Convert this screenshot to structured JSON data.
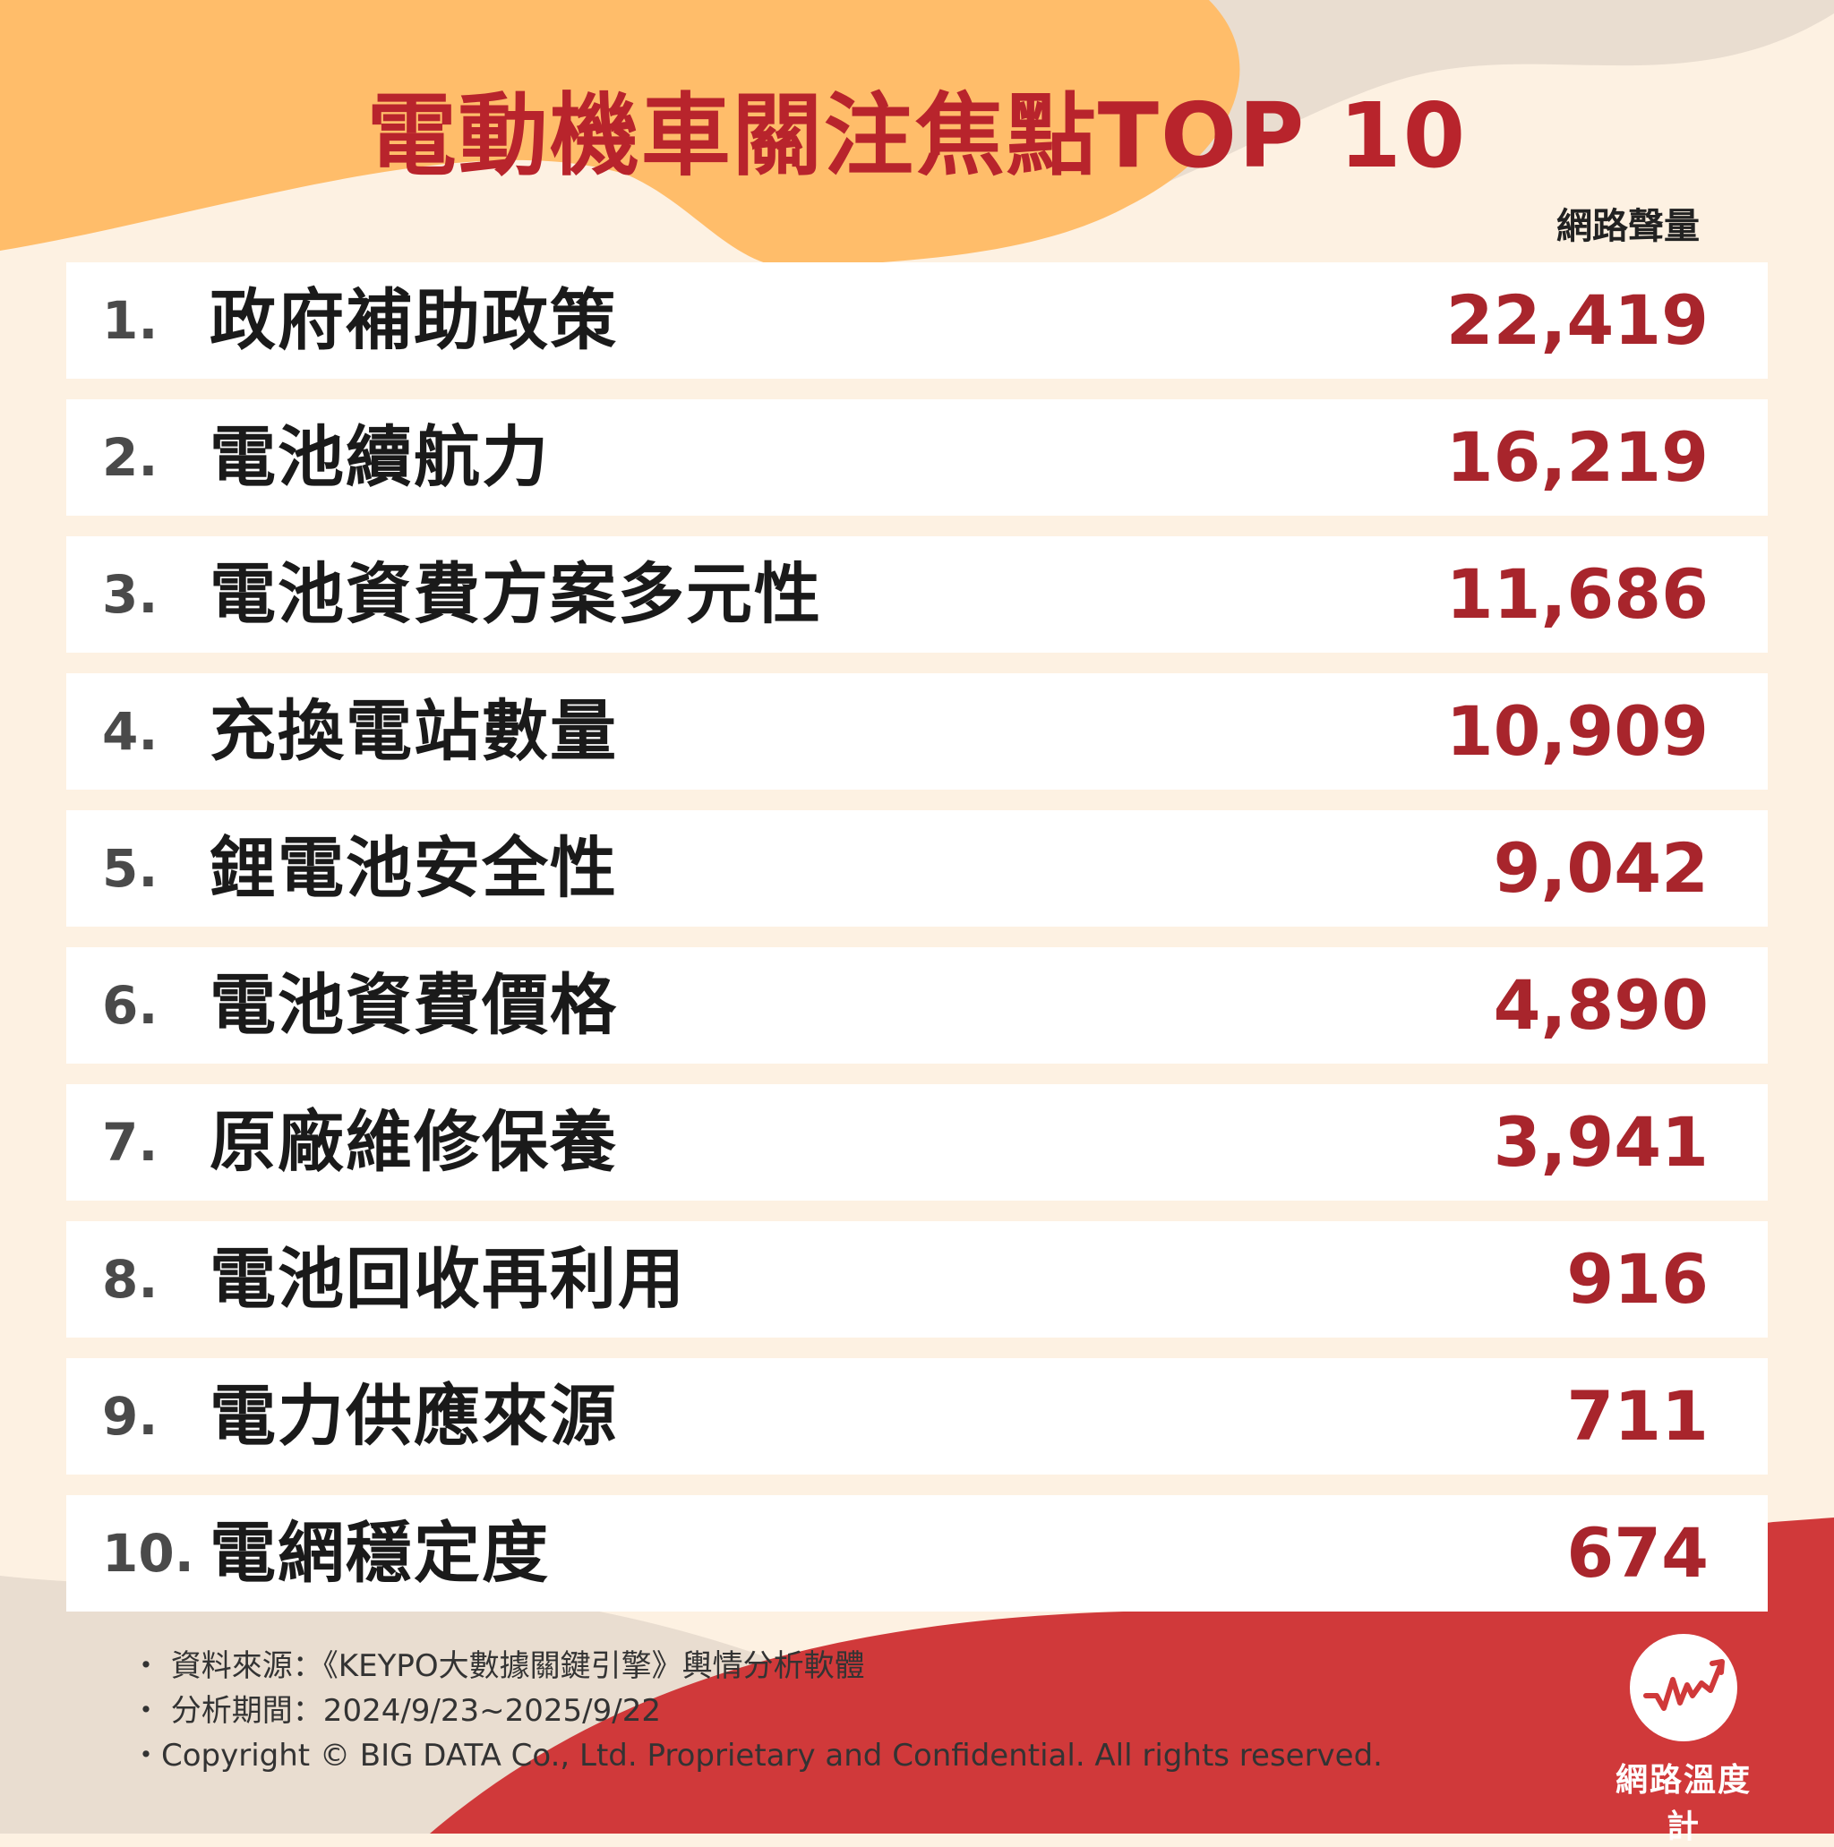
{
  "colors": {
    "background": "#fdf1e2",
    "orange_blob": "#ffbd6a",
    "beige_blob": "#e9ddd0",
    "red_blob": "#d0393a",
    "title": "#b8242c",
    "value": "#a8252c"
  },
  "header": {
    "title": "電動機車關注焦點TOP 10",
    "column_label": "網路聲量"
  },
  "chart_data": {
    "type": "table",
    "title": "電動機車關注焦點TOP 10",
    "value_label": "網路聲量",
    "rows": [
      {
        "rank": "1.",
        "label": "政府補助政策",
        "value": "22,419"
      },
      {
        "rank": "2.",
        "label": "電池續航力",
        "value": "16,219"
      },
      {
        "rank": "3.",
        "label": "電池資費方案多元性",
        "value": "11,686"
      },
      {
        "rank": "4.",
        "label": "充換電站數量",
        "value": "10,909"
      },
      {
        "rank": "5.",
        "label": "鋰電池安全性",
        "value": "9,042"
      },
      {
        "rank": "6.",
        "label": "電池資費價格",
        "value": "4,890"
      },
      {
        "rank": "7.",
        "label": "原廠維修保養",
        "value": "3,941"
      },
      {
        "rank": "8.",
        "label": "電池回收再利用",
        "value": "916"
      },
      {
        "rank": "9.",
        "label": "電力供應來源",
        "value": "711"
      },
      {
        "rank": "10.",
        "label": "電網穩定度",
        "value": "674"
      }
    ]
  },
  "footer": {
    "source": "・ 資料來源：《KEYPO大數據關鍵引擎》輿情分析軟體",
    "period": "・ 分析期間：2024/9/23~2025/9/22",
    "copyright": "・Copyright © BIG DATA Co., Ltd. Proprietary and Confidential. All rights reserved."
  },
  "logo": {
    "text": "網路溫度計",
    "icon": "trend-line-icon"
  }
}
